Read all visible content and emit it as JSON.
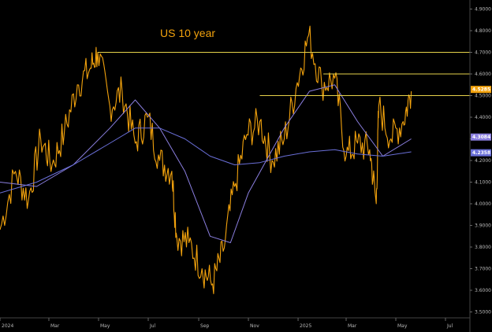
{
  "chart_data": {
    "type": "line",
    "title": "US 10 year",
    "xlabel": "",
    "ylabel": "",
    "x_ticks": [
      "2024",
      "Mar",
      "May",
      "Jul",
      "Sep",
      "Nov",
      "2025",
      "Mar",
      "May",
      "Jul"
    ],
    "y_ticks": [
      "3.5000",
      "3.6000",
      "3.7000",
      "3.8000",
      "3.9000",
      "4.0000",
      "4.1000",
      "4.2000",
      "4.3000",
      "4.4000",
      "4.5000",
      "4.6000",
      "4.7000",
      "4.8000",
      "4.9000"
    ],
    "ylim": [
      3.48,
      4.92
    ],
    "grid": false,
    "series": [
      {
        "name": "",
        "color": "#f2a20d",
        "x": [
          "2024-01-01",
          "2024-01-20",
          "2024-02-05",
          "2024-02-20",
          "2024-03-05",
          "2024-03-20",
          "2024-04-05",
          "2024-04-20",
          "2024-04-30",
          "2024-05-15",
          "2024-05-30",
          "2024-06-15",
          "2024-06-30",
          "2024-07-15",
          "2024-07-30",
          "2024-08-05",
          "2024-08-20",
          "2024-09-05",
          "2024-09-18",
          "2024-10-01",
          "2024-10-15",
          "2024-10-30",
          "2024-11-15",
          "2024-11-30",
          "2024-12-15",
          "2024-12-31",
          "2025-01-14",
          "2025-01-30",
          "2025-02-15",
          "2025-03-01",
          "2025-03-15",
          "2025-03-30",
          "2025-04-07",
          "2025-04-10",
          "2025-04-25",
          "2025-05-10",
          "2025-05-20"
        ],
        "values": [
          3.88,
          4.15,
          4.02,
          4.3,
          4.18,
          4.33,
          4.55,
          4.62,
          4.7,
          4.45,
          4.52,
          4.28,
          4.4,
          4.2,
          4.15,
          3.85,
          3.82,
          3.7,
          3.63,
          3.78,
          4.08,
          4.32,
          4.38,
          4.2,
          4.3,
          4.56,
          4.78,
          4.55,
          4.58,
          4.22,
          4.28,
          4.25,
          4.0,
          4.45,
          4.3,
          4.38,
          4.52
        ]
      },
      {
        "name": "",
        "color": "#8b7fe0",
        "x": [
          "2024-01-01",
          "2024-02-15",
          "2024-03-31",
          "2024-05-15",
          "2024-06-15",
          "2024-07-15",
          "2024-08-15",
          "2024-09-15",
          "2024-10-10",
          "2024-11-01",
          "2024-12-15",
          "2025-01-15",
          "2025-02-15",
          "2025-03-15",
          "2025-04-15",
          "2025-05-20"
        ],
        "values": [
          4.1,
          4.08,
          4.18,
          4.35,
          4.48,
          4.35,
          4.15,
          3.85,
          3.82,
          4.05,
          4.35,
          4.52,
          4.55,
          4.38,
          4.22,
          4.3
        ]
      },
      {
        "name": "",
        "color": "#6a6fd8",
        "x": [
          "2024-01-01",
          "2024-02-15",
          "2024-03-31",
          "2024-05-15",
          "2024-06-15",
          "2024-07-15",
          "2024-08-15",
          "2024-09-15",
          "2024-10-15",
          "2024-11-15",
          "2024-12-15",
          "2025-01-15",
          "2025-02-15",
          "2025-03-15",
          "2025-04-15",
          "2025-05-20"
        ],
        "values": [
          4.05,
          4.1,
          4.18,
          4.28,
          4.35,
          4.35,
          4.3,
          4.22,
          4.18,
          4.19,
          4.22,
          4.24,
          4.25,
          4.23,
          4.22,
          4.24
        ]
      }
    ],
    "annotations": [
      {
        "type": "hline",
        "y": 4.7,
        "x_from": "2024-04-30",
        "x_to": "2025-07-31",
        "color": "#e6d24a"
      },
      {
        "type": "hline",
        "y": 4.6,
        "x_from": "2025-02-01",
        "x_to": "2025-07-31",
        "color": "#e6d24a"
      },
      {
        "type": "hline",
        "y": 4.5,
        "x_from": "2024-11-15",
        "x_to": "2025-07-31",
        "color": "#e6d24a"
      }
    ],
    "price_badges": [
      {
        "label": "4.5285",
        "value": 4.5285,
        "color": "#f2a20d"
      },
      {
        "label": "4.3084",
        "value": 4.3084,
        "color": "#8b7fe0"
      },
      {
        "label": "4.2358",
        "value": 4.2358,
        "color": "#6a6fd8"
      }
    ]
  }
}
